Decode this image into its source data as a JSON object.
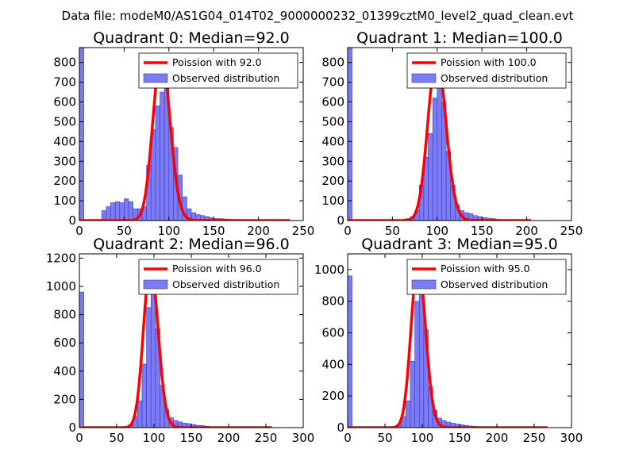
{
  "suptitle": "Data file: modeM0/AS1G04_014T02_9000000232_01399cztM0_level2_quad_clean.evt",
  "colors": {
    "bar_fill": "#7b7bf5",
    "bar_edge": "#3a3ab8",
    "poisson_line": "#ff0000",
    "axes": "#000000"
  },
  "chart_data": [
    {
      "type": "bar",
      "title": "Quadrant 0: Median=92.0",
      "median": 92.0,
      "xlim": [
        0,
        250
      ],
      "ylim": [
        0,
        875
      ],
      "xticks": [
        0,
        50,
        100,
        150,
        200,
        250
      ],
      "yticks": [
        0,
        100,
        200,
        300,
        400,
        500,
        600,
        700,
        800
      ],
      "legend": {
        "line": "Poission with 92.0",
        "bars": "Observed distribution",
        "position": "upper right"
      },
      "bin_width": 5,
      "bins": [
        0,
        5,
        10,
        15,
        20,
        25,
        30,
        35,
        40,
        45,
        50,
        55,
        60,
        65,
        70,
        75,
        80,
        85,
        90,
        95,
        100,
        105,
        110,
        115,
        120,
        125,
        130,
        135,
        140,
        145,
        150,
        155,
        160,
        165,
        170,
        175,
        180,
        185,
        190,
        195,
        200,
        205,
        210,
        215,
        220,
        225,
        230
      ],
      "counts": [
        875,
        0,
        0,
        0,
        5,
        50,
        70,
        90,
        95,
        90,
        110,
        95,
        60,
        60,
        70,
        280,
        460,
        580,
        650,
        670,
        470,
        370,
        230,
        120,
        60,
        40,
        30,
        25,
        20,
        15,
        10,
        10,
        8,
        6,
        5,
        3,
        3,
        2,
        2,
        1,
        1,
        1,
        0,
        0,
        0,
        0,
        0
      ],
      "poisson_mean": 92.0,
      "poisson_peak": 835,
      "poisson_range": [
        0,
        235
      ]
    },
    {
      "type": "bar",
      "title": "Quadrant 1: Median=100.0",
      "median": 100.0,
      "xlim": [
        0,
        250
      ],
      "ylim": [
        0,
        875
      ],
      "xticks": [
        0,
        50,
        100,
        150,
        200,
        250
      ],
      "yticks": [
        0,
        100,
        200,
        300,
        400,
        500,
        600,
        700,
        800
      ],
      "legend": {
        "line": "Poission with 100.0",
        "bars": "Observed distribution",
        "position": "upper right"
      },
      "bin_width": 5,
      "bins": [
        0,
        5,
        10,
        15,
        20,
        25,
        30,
        35,
        40,
        45,
        50,
        55,
        60,
        65,
        70,
        75,
        80,
        85,
        90,
        95,
        100,
        105,
        110,
        115,
        120,
        125,
        130,
        135,
        140,
        145,
        150,
        155,
        160,
        165,
        170,
        175,
        180,
        185,
        190,
        195,
        200
      ],
      "counts": [
        875,
        0,
        0,
        0,
        0,
        0,
        0,
        0,
        0,
        0,
        2,
        3,
        5,
        10,
        20,
        50,
        180,
        320,
        440,
        620,
        780,
        600,
        350,
        180,
        80,
        50,
        40,
        35,
        25,
        20,
        15,
        12,
        10,
        6,
        3,
        2,
        1,
        0,
        0,
        0,
        0
      ],
      "poisson_mean": 100.0,
      "poisson_peak": 830,
      "poisson_range": [
        0,
        205
      ]
    },
    {
      "type": "bar",
      "title": "Quadrant 2: Median=96.0",
      "median": 96.0,
      "xlim": [
        0,
        300
      ],
      "ylim": [
        0,
        1230
      ],
      "xticks": [
        0,
        50,
        100,
        150,
        200,
        250,
        300
      ],
      "yticks": [
        0,
        200,
        400,
        600,
        800,
        1000,
        1200
      ],
      "legend": {
        "line": "Poission with 96.0",
        "bars": "Observed distribution",
        "position": "upper right"
      },
      "bin_width": 6,
      "bins": [
        0,
        6,
        12,
        18,
        24,
        30,
        36,
        42,
        48,
        54,
        60,
        66,
        72,
        78,
        84,
        90,
        96,
        102,
        108,
        114,
        120,
        126,
        132,
        138,
        144,
        150,
        156,
        162,
        168,
        174,
        180,
        186,
        192,
        198,
        204,
        210,
        216,
        222,
        228,
        234,
        240,
        246,
        252
      ],
      "counts": [
        960,
        0,
        0,
        0,
        0,
        0,
        0,
        0,
        0,
        2,
        5,
        20,
        80,
        190,
        450,
        850,
        1100,
        700,
        300,
        130,
        70,
        50,
        40,
        32,
        28,
        22,
        16,
        14,
        10,
        7,
        5,
        3,
        2,
        2,
        1,
        1,
        0,
        0,
        0,
        0,
        0,
        0,
        0
      ],
      "poisson_mean": 96.0,
      "poisson_peak": 1150,
      "poisson_range": [
        0,
        258
      ]
    },
    {
      "type": "bar",
      "title": "Quadrant 3: Median=95.0",
      "median": 95.0,
      "xlim": [
        0,
        300
      ],
      "ylim": [
        0,
        1100
      ],
      "xticks": [
        0,
        50,
        100,
        150,
        200,
        250,
        300
      ],
      "yticks": [
        0,
        200,
        400,
        600,
        800,
        1000
      ],
      "legend": {
        "line": "Poission with 95.0",
        "bars": "Observed distribution",
        "position": "upper right"
      },
      "bin_width": 6,
      "bins": [
        0,
        6,
        12,
        18,
        24,
        30,
        36,
        42,
        48,
        54,
        60,
        66,
        72,
        78,
        84,
        90,
        96,
        102,
        108,
        114,
        120,
        126,
        132,
        138,
        144,
        150,
        156,
        162,
        168,
        174,
        180,
        186,
        192,
        198,
        204,
        210,
        216,
        222,
        228,
        234,
        240,
        246,
        252,
        258
      ],
      "counts": [
        960,
        0,
        0,
        0,
        0,
        0,
        0,
        0,
        0,
        2,
        4,
        18,
        70,
        170,
        420,
        800,
        1000,
        620,
        260,
        110,
        60,
        45,
        35,
        28,
        22,
        18,
        14,
        10,
        8,
        6,
        4,
        3,
        2,
        2,
        1,
        1,
        0,
        0,
        0,
        0,
        0,
        0,
        0,
        0
      ],
      "poisson_mean": 95.0,
      "poisson_peak": 1040,
      "poisson_range": [
        0,
        268
      ]
    }
  ]
}
